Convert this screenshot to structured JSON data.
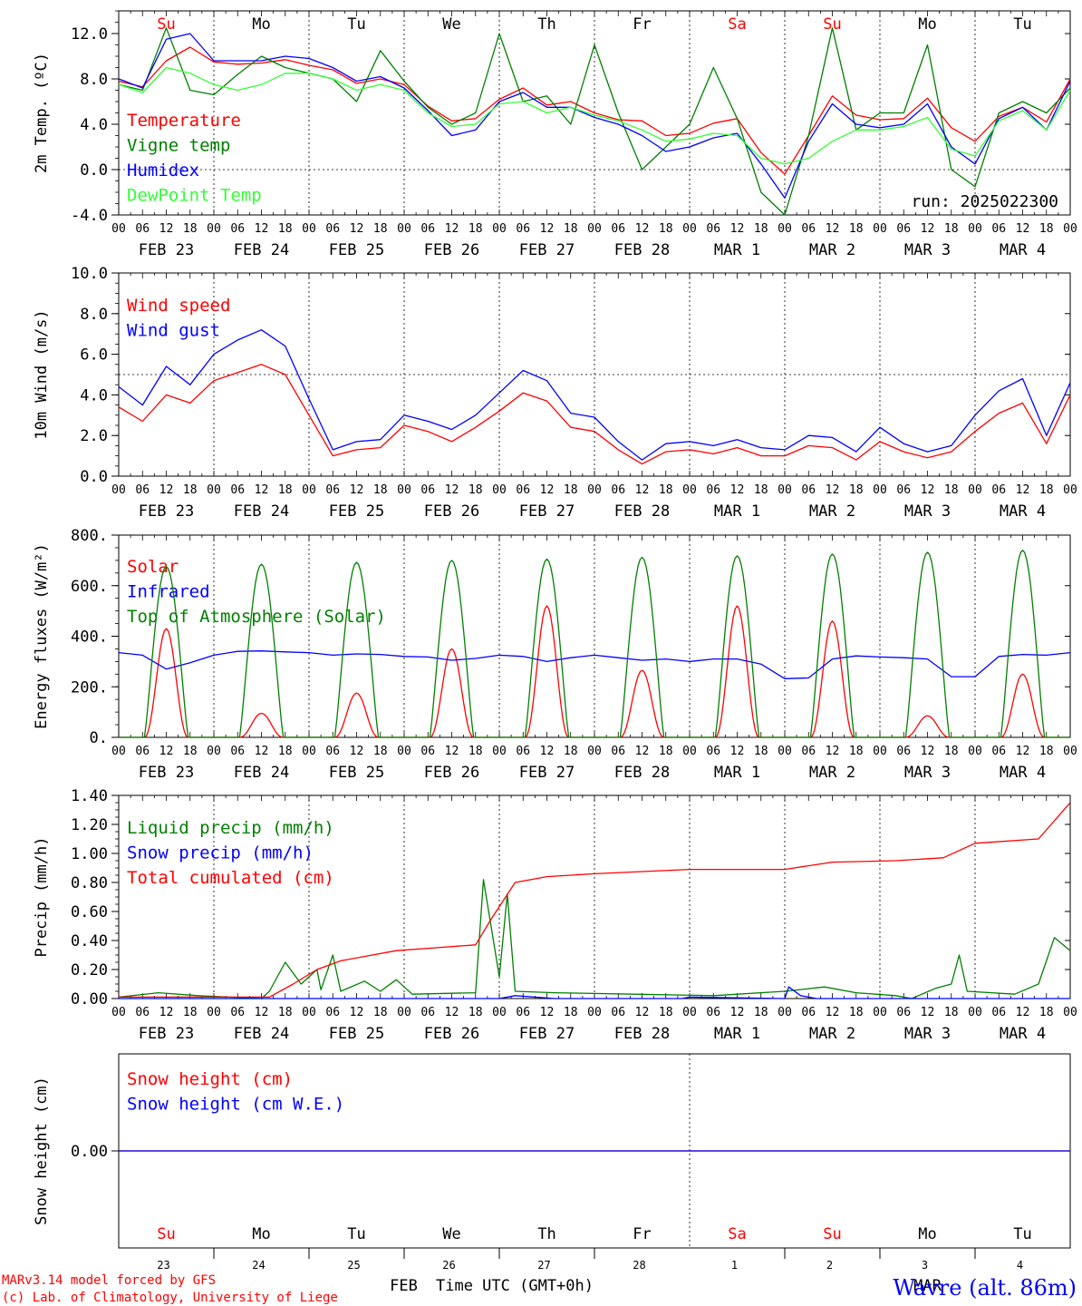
{
  "chart_data": [
    {
      "type": "line",
      "ylabel": "2m Temp. (ºC)",
      "ylim": [
        -4.0,
        14.0
      ],
      "yticks": [
        "-4.0",
        "0.0",
        "4.0",
        "8.0",
        "12.0"
      ],
      "x_hours": [
        0,
        6,
        12,
        18,
        24,
        30,
        36,
        42,
        48,
        54,
        60,
        66,
        72,
        78,
        84,
        90,
        96,
        102,
        108,
        114,
        120,
        126,
        132,
        138,
        144,
        150,
        156,
        162,
        168,
        174,
        180,
        186,
        192,
        198,
        204,
        210,
        216,
        222,
        228,
        234,
        240
      ],
      "reference_line": 0.0,
      "annotation": "run: 2025022300",
      "series": [
        {
          "name": "Temperature",
          "color": "#ff0000",
          "values": [
            7.8,
            7.3,
            9.6,
            10.8,
            9.5,
            9.3,
            9.4,
            9.7,
            9.2,
            8.8,
            7.6,
            8.0,
            7.5,
            5.6,
            4.3,
            4.5,
            6.2,
            7.2,
            5.7,
            6.0,
            5.0,
            4.4,
            4.3,
            3.0,
            3.2,
            4.1,
            4.5,
            1.5,
            -0.4,
            3.0,
            6.5,
            4.8,
            4.4,
            4.5,
            6.3,
            3.7,
            2.5,
            4.7,
            5.5,
            4.2,
            8.0
          ]
        },
        {
          "name": "Vigne temp",
          "color": "#008000",
          "values": [
            7.5,
            7.0,
            12.5,
            7.0,
            6.6,
            8.4,
            10.0,
            9.0,
            8.5,
            8.0,
            6.0,
            10.5,
            7.8,
            5.5,
            4.0,
            5.0,
            12.0,
            6.0,
            6.5,
            4.0,
            11.0,
            5.0,
            0.0,
            2.0,
            4.0,
            9.0,
            4.5,
            -2.0,
            -4.0,
            3.0,
            12.5,
            3.5,
            5.0,
            5.0,
            11.0,
            0.0,
            -1.5,
            5.0,
            6.0,
            5.0,
            7.2
          ]
        },
        {
          "name": "Humidex",
          "color": "#0000ff",
          "values": [
            8.0,
            7.2,
            11.5,
            12.0,
            9.6,
            9.6,
            9.6,
            10.0,
            9.8,
            9.0,
            7.8,
            8.2,
            7.2,
            5.2,
            3.0,
            3.5,
            6.0,
            6.8,
            5.5,
            5.5,
            4.6,
            4.0,
            3.0,
            1.6,
            2.0,
            2.8,
            3.2,
            0.5,
            -2.5,
            2.5,
            5.8,
            4.0,
            3.7,
            4.0,
            5.8,
            2.0,
            0.5,
            4.5,
            5.5,
            3.5,
            7.8
          ]
        },
        {
          "name": "DewPoint Temp",
          "color": "#33ff33",
          "values": [
            7.5,
            6.8,
            9.0,
            8.5,
            7.5,
            7.0,
            7.5,
            8.5,
            8.5,
            8.0,
            7.0,
            7.5,
            7.0,
            5.0,
            3.8,
            4.0,
            5.8,
            6.0,
            5.0,
            5.5,
            4.8,
            4.3,
            3.5,
            2.5,
            2.7,
            3.2,
            3.0,
            1.0,
            0.5,
            1.0,
            2.5,
            3.5,
            3.5,
            3.8,
            4.6,
            1.8,
            1.2,
            4.3,
            5.2,
            3.5,
            7.0
          ]
        }
      ]
    },
    {
      "type": "line",
      "ylabel": "10m Wind (m/s)",
      "ylim": [
        0.0,
        10.0
      ],
      "yticks": [
        "0.0",
        "2.0",
        "4.0",
        "6.0",
        "8.0",
        "10.0"
      ],
      "x_hours": [
        0,
        6,
        12,
        18,
        24,
        30,
        36,
        42,
        48,
        54,
        60,
        66,
        72,
        78,
        84,
        90,
        96,
        102,
        108,
        114,
        120,
        126,
        132,
        138,
        144,
        150,
        156,
        162,
        168,
        174,
        180,
        186,
        192,
        198,
        204,
        210,
        216,
        222,
        228,
        234,
        240
      ],
      "reference_line": 5.0,
      "series": [
        {
          "name": "Wind speed",
          "color": "#ff0000",
          "values": [
            3.4,
            2.7,
            4.0,
            3.6,
            4.7,
            5.1,
            5.5,
            5.0,
            3.0,
            1.0,
            1.3,
            1.4,
            2.5,
            2.2,
            1.7,
            2.4,
            3.2,
            4.1,
            3.7,
            2.4,
            2.2,
            1.3,
            0.6,
            1.2,
            1.3,
            1.1,
            1.4,
            1.0,
            1.0,
            1.5,
            1.4,
            0.8,
            1.7,
            1.2,
            0.9,
            1.2,
            2.2,
            3.1,
            3.6,
            1.6,
            4.0
          ]
        },
        {
          "name": "Wind gust",
          "color": "#0000ff",
          "values": [
            4.4,
            3.5,
            5.4,
            4.5,
            6.0,
            6.7,
            7.2,
            6.4,
            3.8,
            1.3,
            1.7,
            1.8,
            3.0,
            2.7,
            2.3,
            3.0,
            4.1,
            5.2,
            4.7,
            3.1,
            2.9,
            1.7,
            0.8,
            1.6,
            1.7,
            1.5,
            1.8,
            1.4,
            1.3,
            2.0,
            1.9,
            1.2,
            2.4,
            1.6,
            1.2,
            1.5,
            3.0,
            4.2,
            4.8,
            2.0,
            4.6
          ]
        }
      ]
    },
    {
      "type": "line",
      "ylabel": "Energy fluxes (W/m²)",
      "ylim": [
        0,
        800
      ],
      "yticks": [
        "0.",
        "200.",
        "400.",
        "600.",
        "800."
      ],
      "x_hours_note": "hourly values over 240 h",
      "series": [
        {
          "name": "Solar",
          "color": "#ff0000",
          "daily_peaks": [
            430,
            95,
            175,
            350,
            520,
            265,
            520,
            460,
            85,
            250
          ]
        },
        {
          "name": "Infrared",
          "color": "#0000ff",
          "values": [
            335,
            325,
            270,
            295,
            325,
            340,
            342,
            338,
            335,
            325,
            330,
            328,
            320,
            318,
            305,
            312,
            325,
            320,
            300,
            315,
            325,
            315,
            305,
            310,
            300,
            310,
            310,
            290,
            232,
            235,
            310,
            322,
            318,
            315,
            310,
            240,
            240,
            320,
            328,
            325,
            335
          ]
        },
        {
          "name": "Top of Atmosphere (Solar)",
          "color": "#008000",
          "daily_peaks": [
            675,
            685,
            692,
            700,
            705,
            712,
            718,
            725,
            732,
            740
          ]
        }
      ]
    },
    {
      "type": "line",
      "ylabel": "Precip (mm/h)",
      "ylim": [
        0.0,
        1.4
      ],
      "yticks": [
        "0.00",
        "0.20",
        "0.40",
        "0.60",
        "0.80",
        "1.00",
        "1.20",
        "1.40"
      ],
      "series": [
        {
          "name": "Liquid precip (mm/h)",
          "color": "#008000",
          "points": [
            [
              0,
              0.01
            ],
            [
              10,
              0.04
            ],
            [
              20,
              0.02
            ],
            [
              36,
              0.0
            ],
            [
              38,
              0.05
            ],
            [
              42,
              0.25
            ],
            [
              46,
              0.1
            ],
            [
              50,
              0.2
            ],
            [
              51,
              0.06
            ],
            [
              54,
              0.3
            ],
            [
              56,
              0.05
            ],
            [
              62,
              0.12
            ],
            [
              66,
              0.05
            ],
            [
              70,
              0.13
            ],
            [
              74,
              0.03
            ],
            [
              90,
              0.04
            ],
            [
              92,
              0.82
            ],
            [
              96,
              0.15
            ],
            [
              98,
              0.72
            ],
            [
              100,
              0.05
            ],
            [
              110,
              0.04
            ],
            [
              130,
              0.03
            ],
            [
              150,
              0.02
            ],
            [
              168,
              0.05
            ],
            [
              178,
              0.08
            ],
            [
              186,
              0.04
            ],
            [
              196,
              0.02
            ],
            [
              200,
              0.0
            ],
            [
              206,
              0.07
            ],
            [
              210,
              0.1
            ],
            [
              212,
              0.3
            ],
            [
              214,
              0.05
            ],
            [
              226,
              0.03
            ],
            [
              232,
              0.1
            ],
            [
              236,
              0.42
            ],
            [
              240,
              0.33
            ]
          ]
        },
        {
          "name": "Snow precip (mm/h)",
          "color": "#0000ff",
          "points": [
            [
              0,
              0.0
            ],
            [
              96,
              0.0
            ],
            [
              100,
              0.02
            ],
            [
              110,
              0.0
            ],
            [
              142,
              0.0
            ],
            [
              144,
              0.01
            ],
            [
              168,
              0.0
            ],
            [
              169,
              0.08
            ],
            [
              172,
              0.02
            ],
            [
              176,
              0.0
            ],
            [
              240,
              0.0
            ]
          ]
        },
        {
          "name": "Total cumulated (cm)",
          "color": "#ff0000",
          "points": [
            [
              0,
              0.01
            ],
            [
              38,
              0.01
            ],
            [
              44,
              0.1
            ],
            [
              50,
              0.2
            ],
            [
              56,
              0.26
            ],
            [
              64,
              0.3
            ],
            [
              70,
              0.33
            ],
            [
              80,
              0.35
            ],
            [
              90,
              0.37
            ],
            [
              94,
              0.55
            ],
            [
              100,
              0.8
            ],
            [
              108,
              0.84
            ],
            [
              120,
              0.86
            ],
            [
              144,
              0.89
            ],
            [
              168,
              0.89
            ],
            [
              180,
              0.94
            ],
            [
              196,
              0.95
            ],
            [
              208,
              0.97
            ],
            [
              216,
              1.07
            ],
            [
              232,
              1.1
            ],
            [
              240,
              1.35
            ]
          ]
        }
      ]
    },
    {
      "type": "line",
      "ylabel": "Snow height (cm)",
      "yticks": [
        "0.00"
      ],
      "series": [
        {
          "name": "Snow height (cm)",
          "color": "#ff0000",
          "values": [
            0.0,
            0.0
          ]
        },
        {
          "name": "Snow height (cm W.E.)",
          "color": "#0000ff",
          "values": [
            0.0,
            0.0
          ]
        }
      ]
    }
  ],
  "time_axis": {
    "hour_ticks": [
      "00",
      "06",
      "12",
      "18"
    ],
    "end_tick": "00",
    "dates": [
      "FEB 23",
      "FEB 24",
      "FEB 25",
      "FEB 26",
      "FEB 27",
      "FEB 28",
      "MAR  1",
      "MAR  2",
      "MAR  3",
      "MAR  4"
    ],
    "weekdays": [
      "Su",
      "Mo",
      "Tu",
      "We",
      "Th",
      "Fr",
      "Sa",
      "Su",
      "Mo",
      "Tu"
    ],
    "weekend_color": "#ff0000",
    "day_numbers": [
      "23",
      "24",
      "25",
      "26",
      "27",
      "28",
      "1",
      "2",
      "3",
      "4"
    ],
    "month_feb": "FEB",
    "month_mar": "MAR",
    "xlabel": "Time UTC (GMT+0h)"
  },
  "footer": {
    "credit_line1": "MARv3.14 model forced by GFS",
    "credit_line2": "(c) Lab. of Climatology, University of Liege",
    "location": "Wavre (alt. 86m)"
  }
}
